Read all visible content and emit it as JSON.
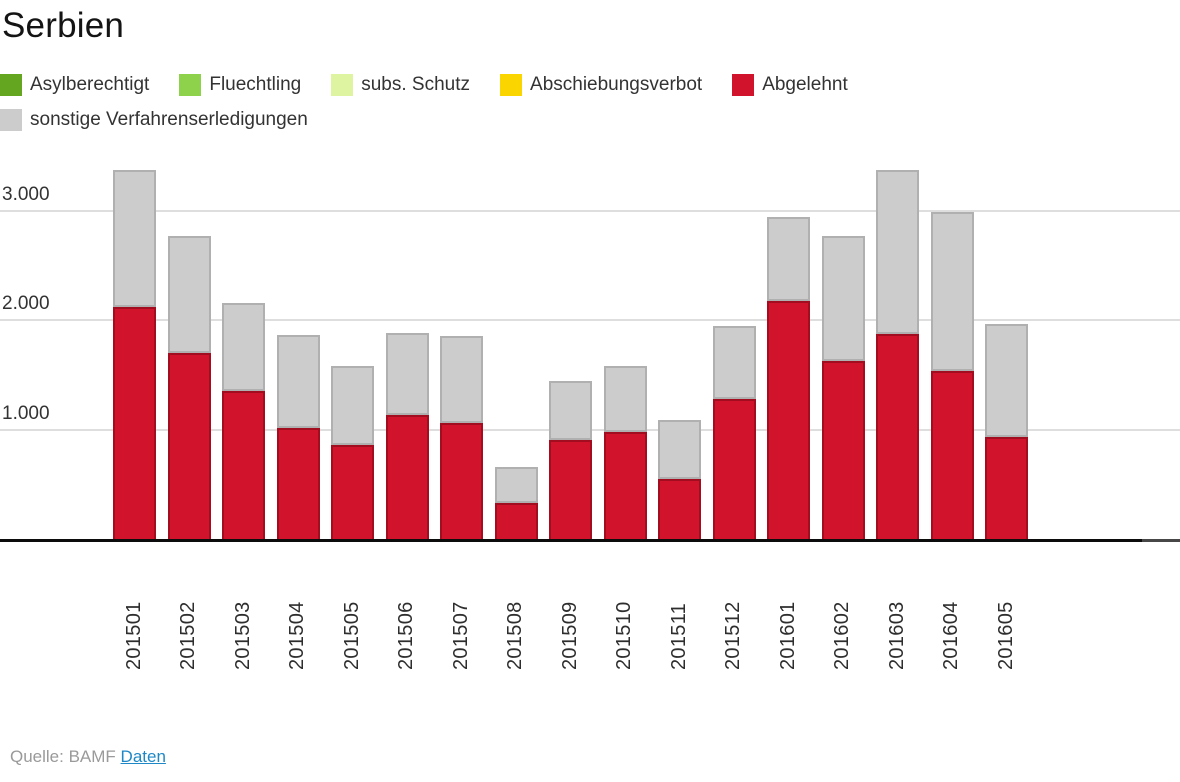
{
  "title": "Serbien",
  "source": {
    "prefix": "Quelle: BAMF",
    "link_label": "Daten"
  },
  "colors": {
    "background": "#ffffff",
    "gridline": "#dedede",
    "axis": "#0c0c0c",
    "title_text": "#141414",
    "label_text": "#333333",
    "source_text": "#9a9a9a",
    "link_blue": "#1e88c7"
  },
  "chart_data": {
    "type": "bar",
    "stacked": true,
    "title": "Serbien",
    "xlabel": "",
    "ylabel": "",
    "grid": true,
    "legend_position": "top",
    "ylim": [
      0,
      3430
    ],
    "yticks": [
      {
        "value": 1000,
        "label": "1.000"
      },
      {
        "value": 2000,
        "label": "2.000"
      },
      {
        "value": 3000,
        "label": "3.000"
      }
    ],
    "categories": [
      "201501",
      "201502",
      "201503",
      "201504",
      "201505",
      "201506",
      "201507",
      "201508",
      "201509",
      "201510",
      "201511",
      "201512",
      "201601",
      "201602",
      "201603",
      "201604",
      "201605"
    ],
    "series": [
      {
        "name": "Asylberechtigt",
        "color": "#64a61f",
        "border_color": "#4f8517",
        "values": [
          0,
          0,
          0,
          0,
          0,
          0,
          0,
          0,
          0,
          0,
          0,
          0,
          0,
          0,
          0,
          0,
          0
        ]
      },
      {
        "name": "Fluechtling",
        "color": "#8ed14b",
        "border_color": "#74b637",
        "values": [
          0,
          0,
          0,
          0,
          0,
          0,
          0,
          0,
          0,
          0,
          0,
          0,
          0,
          0,
          0,
          0,
          0
        ]
      },
      {
        "name": "subs. Schutz",
        "color": "#dff4a1",
        "border_color": "#c4dd85",
        "values": [
          0,
          0,
          0,
          0,
          0,
          0,
          0,
          0,
          0,
          0,
          0,
          0,
          0,
          0,
          0,
          0,
          0
        ]
      },
      {
        "name": "Abschiebungsverbot",
        "color": "#fbd500",
        "border_color": "#d9b800",
        "values": [
          0,
          0,
          0,
          0,
          0,
          0,
          0,
          0,
          0,
          0,
          0,
          0,
          0,
          0,
          0,
          0,
          0
        ]
      },
      {
        "name": "Abgelehnt",
        "color": "#d1142c",
        "border_color": "#a30d20",
        "values": [
          2130,
          1715,
          1365,
          1025,
          870,
          1145,
          1070,
          340,
          915,
          990,
          560,
          1290,
          2185,
          1635,
          1885,
          1545,
          940
        ]
      },
      {
        "name": "sonstige Verfahrenserledigungen",
        "color": "#cccccc",
        "border_color": "#b0b0b0",
        "values": [
          1255,
          1065,
          805,
          850,
          720,
          750,
          795,
          330,
          540,
          600,
          540,
          665,
          770,
          1145,
          1500,
          1455,
          1035
        ]
      }
    ]
  }
}
